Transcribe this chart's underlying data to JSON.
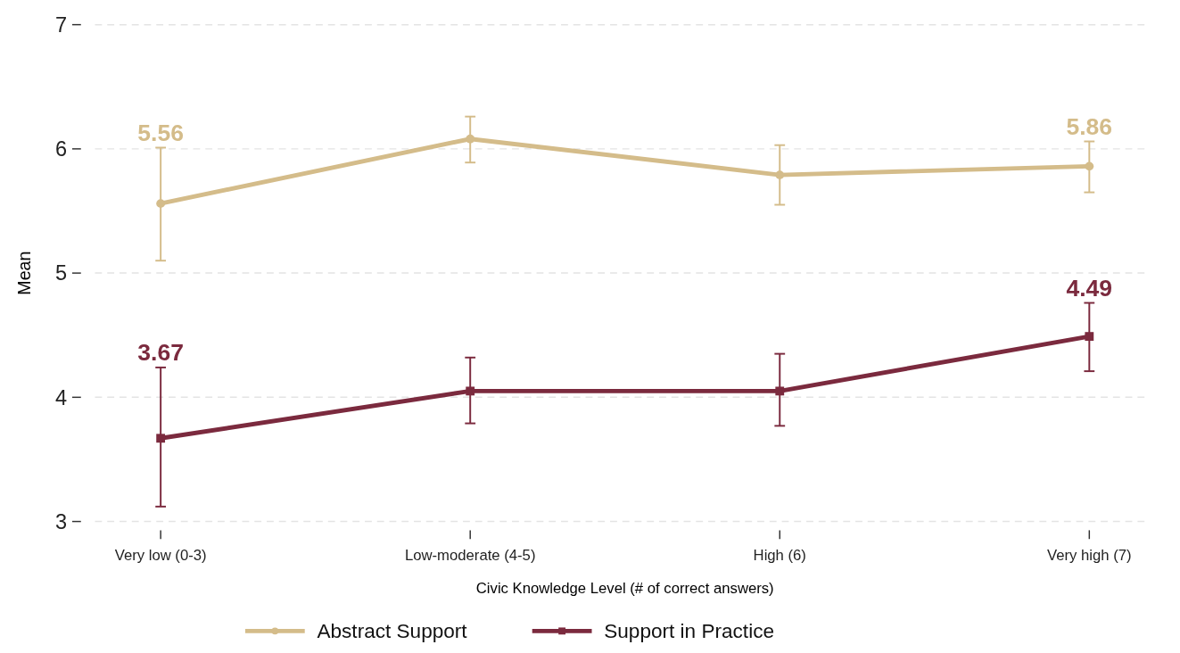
{
  "chart_data": {
    "type": "line",
    "xlabel": "Civic Knowledge Level (# of correct answers)",
    "ylabel": "Mean",
    "categories": [
      "Very low (0-3)",
      "Low-moderate (4-5)",
      "High (6)",
      "Very high (7)"
    ],
    "series": [
      {
        "name": "Abstract Support",
        "color": "#d4bc8a",
        "marker": "circle",
        "values": [
          5.56,
          6.08,
          5.79,
          5.86
        ],
        "errors": [
          [
            5.1,
            6.01
          ],
          [
            5.89,
            6.26
          ],
          [
            5.55,
            6.03
          ],
          [
            5.65,
            6.06
          ]
        ],
        "value_labels": [
          "5.56",
          null,
          null,
          "5.86"
        ]
      },
      {
        "name": "Support in Practice",
        "color": "#7b2a3e",
        "marker": "square",
        "values": [
          3.67,
          4.05,
          4.05,
          4.49
        ],
        "errors": [
          [
            3.12,
            4.24
          ],
          [
            3.79,
            4.32
          ],
          [
            3.77,
            4.35
          ],
          [
            4.21,
            4.76
          ]
        ],
        "value_labels": [
          "3.67",
          null,
          null,
          "4.49"
        ]
      }
    ],
    "ylim": [
      3,
      7
    ],
    "yticks": [
      3,
      4,
      5,
      6,
      7
    ],
    "grid": "y",
    "legend": "bottom",
    "line_style": "solid"
  }
}
